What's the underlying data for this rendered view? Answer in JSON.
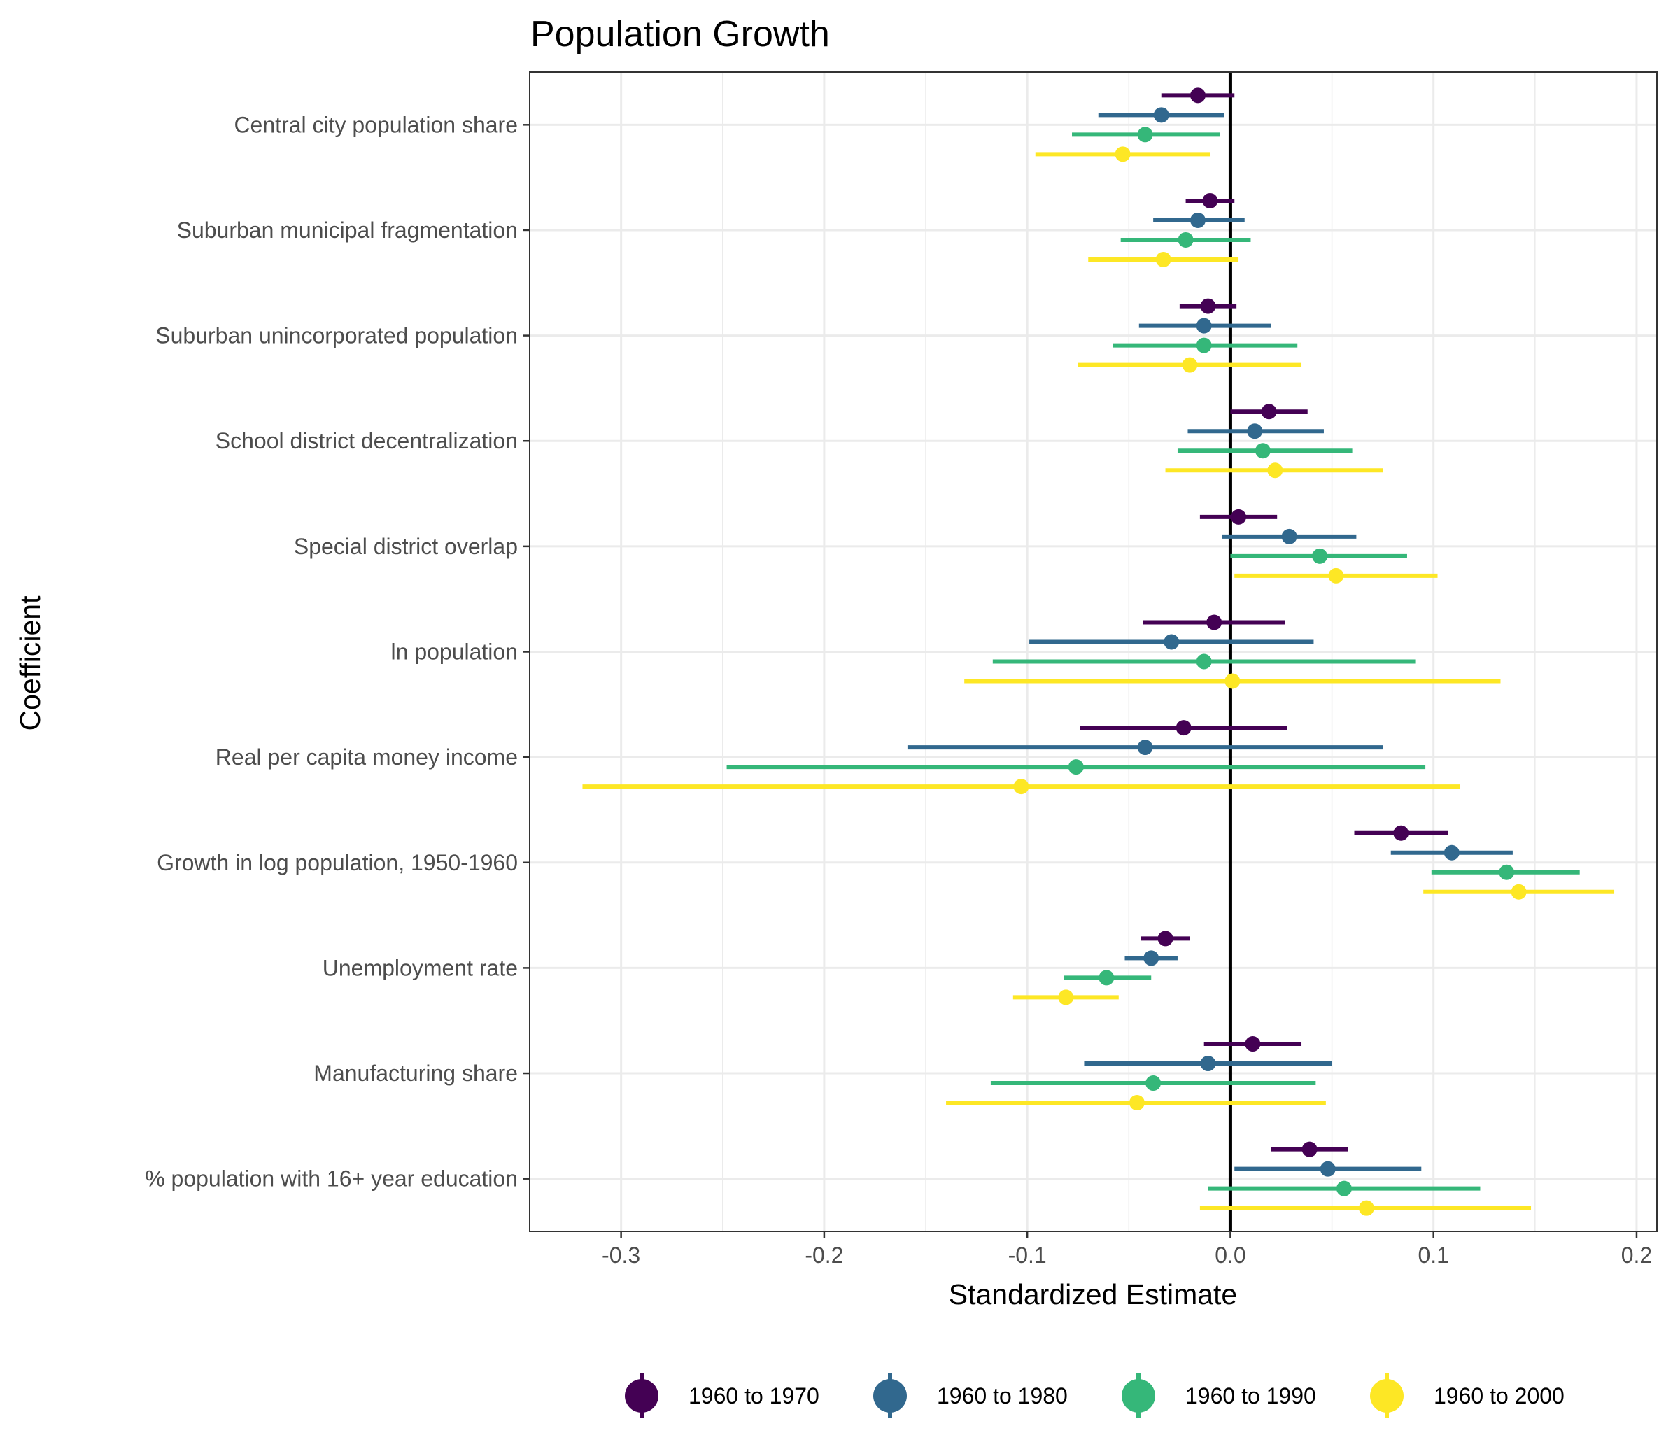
{
  "chart_data": {
    "type": "scatter",
    "subtype": "coefficient-plot-with-error-bars",
    "title": "Population Growth",
    "xlabel": "Standardized Estimate",
    "ylabel": "Coefficient",
    "xlim": [
      -0.345,
      0.21
    ],
    "x_ticks": [
      -0.3,
      -0.2,
      -0.1,
      0.0,
      0.1,
      0.2
    ],
    "x_tick_labels": [
      "-0.3",
      "-0.2",
      "-0.1",
      "0.0",
      "0.1",
      "0.2"
    ],
    "reference_line_x": 0,
    "grid": true,
    "legend_position": "bottom",
    "categories": [
      "Central city population share",
      "Suburban municipal fragmentation",
      "Suburban unincorporated population",
      "School district decentralization",
      "Special district overlap",
      "ln population",
      "Real per capita money income",
      "Growth in log population, 1950-1960",
      "Unemployment rate",
      "Manufacturing share",
      "% population with 16+ year education"
    ],
    "series": [
      {
        "name": "1960 to 1970",
        "color": "#440154",
        "estimates": [
          -0.016,
          -0.01,
          -0.011,
          0.019,
          0.004,
          -0.008,
          -0.023,
          0.084,
          -0.032,
          0.011,
          0.039
        ],
        "lower": [
          -0.034,
          -0.022,
          -0.025,
          0.0,
          -0.015,
          -0.043,
          -0.074,
          0.061,
          -0.044,
          -0.013,
          0.02
        ],
        "upper": [
          0.002,
          0.002,
          0.003,
          0.038,
          0.023,
          0.027,
          0.028,
          0.107,
          -0.02,
          0.035,
          0.058
        ]
      },
      {
        "name": "1960 to 1980",
        "color": "#31688E",
        "estimates": [
          -0.034,
          -0.016,
          -0.013,
          0.012,
          0.029,
          -0.029,
          -0.042,
          0.109,
          -0.039,
          -0.011,
          0.048
        ],
        "lower": [
          -0.065,
          -0.038,
          -0.045,
          -0.021,
          -0.004,
          -0.099,
          -0.159,
          0.079,
          -0.052,
          -0.072,
          0.002
        ],
        "upper": [
          -0.003,
          0.007,
          0.02,
          0.046,
          0.062,
          0.041,
          0.075,
          0.139,
          -0.026,
          0.05,
          0.094
        ]
      },
      {
        "name": "1960 to 1990",
        "color": "#35B779",
        "estimates": [
          -0.042,
          -0.022,
          -0.013,
          0.016,
          0.044,
          -0.013,
          -0.076,
          0.136,
          -0.061,
          -0.038,
          0.056
        ],
        "lower": [
          -0.078,
          -0.054,
          -0.058,
          -0.026,
          0.0,
          -0.117,
          -0.248,
          0.099,
          -0.082,
          -0.118,
          -0.011
        ],
        "upper": [
          -0.005,
          0.01,
          0.033,
          0.06,
          0.087,
          0.091,
          0.096,
          0.172,
          -0.039,
          0.042,
          0.123
        ]
      },
      {
        "name": "1960 to 2000",
        "color": "#FDE725",
        "estimates": [
          -0.053,
          -0.033,
          -0.02,
          0.022,
          0.052,
          0.001,
          -0.103,
          0.142,
          -0.081,
          -0.046,
          0.067
        ],
        "lower": [
          -0.096,
          -0.07,
          -0.075,
          -0.032,
          0.002,
          -0.131,
          -0.319,
          0.095,
          -0.107,
          -0.14,
          -0.015
        ],
        "upper": [
          -0.01,
          0.004,
          0.035,
          0.075,
          0.102,
          0.133,
          0.113,
          0.189,
          -0.055,
          0.047,
          0.148
        ]
      }
    ]
  }
}
